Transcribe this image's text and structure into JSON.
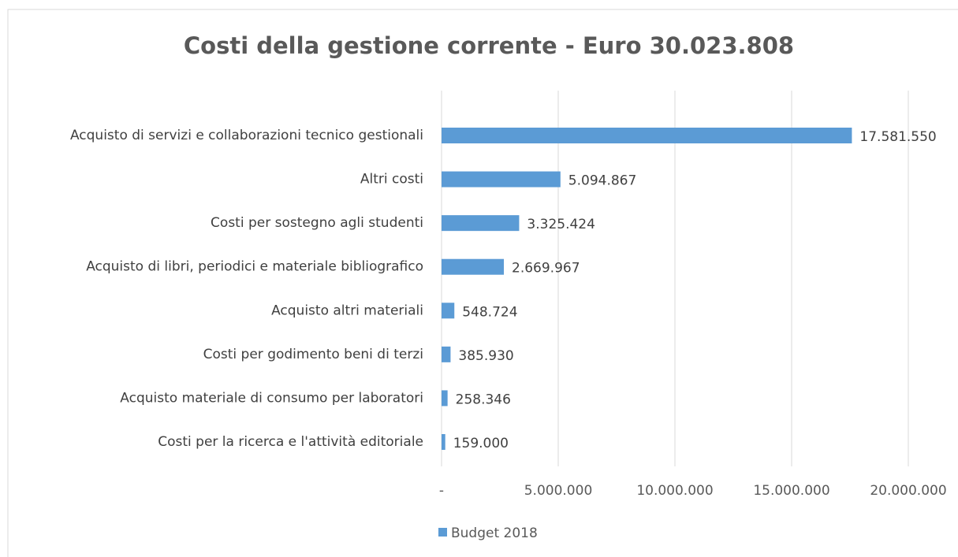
{
  "chart_data": {
    "type": "bar",
    "orientation": "horizontal",
    "title": "Costi della gestione corrente  -  Euro 30.023.808",
    "categories": [
      "Acquisto di servizi e collaborazioni tecnico gestionali",
      "Altri costi",
      "Costi per sostegno agli studenti",
      "Acquisto di libri, periodici e materiale bibliografico",
      "Acquisto altri materiali",
      "Costi per godimento beni di terzi",
      "Acquisto materiale di consumo per laboratori",
      "Costi per la ricerca e l'attività editoriale"
    ],
    "series": [
      {
        "name": "Budget 2018",
        "color": "#5b9bd5",
        "values": [
          17581550,
          5094867,
          3325424,
          2669967,
          548724,
          385930,
          258346,
          159000
        ],
        "value_labels": [
          "17.581.550",
          "5.094.867",
          "3.325.424",
          "2.669.967",
          "548.724",
          "385.930",
          "258.346",
          "159.000"
        ]
      }
    ],
    "xlim": [
      0,
      20000000
    ],
    "xticks": [
      {
        "value": 0,
        "label": "-"
      },
      {
        "value": 5000000,
        "label": "5.000.000"
      },
      {
        "value": 10000000,
        "label": "10.000.000"
      },
      {
        "value": 15000000,
        "label": "15.000.000"
      },
      {
        "value": 20000000,
        "label": "20.000.000"
      }
    ],
    "grid": true,
    "legend": "bottom"
  }
}
